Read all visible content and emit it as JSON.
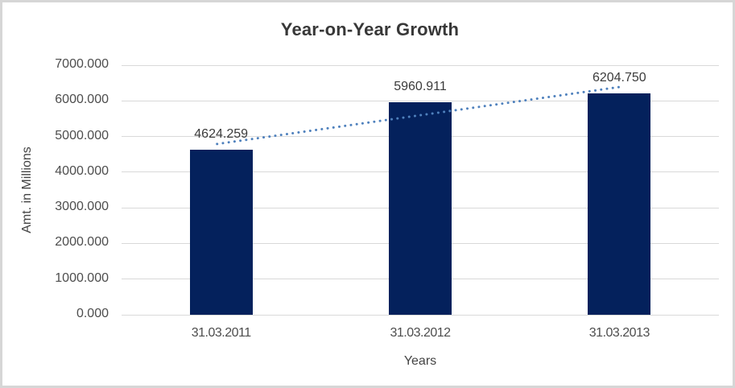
{
  "chart_data": {
    "type": "bar",
    "title": "Year-on-Year Growth",
    "categories": [
      "31.03.2011",
      "31.03.2012",
      "31.03.2013"
    ],
    "values": [
      4624.259,
      5960.911,
      6204.75
    ],
    "data_labels": [
      "4624.259",
      "5960.911",
      "6204.750"
    ],
    "xlabel": "Years",
    "ylabel": "Amt. in Millions",
    "ylim": [
      0,
      7000
    ],
    "ytick_step": 1000,
    "yticks": [
      "0.000",
      "1000.000",
      "2000.000",
      "3000.000",
      "4000.000",
      "5000.000",
      "6000.000",
      "7000.000"
    ],
    "grid": true,
    "legend": "none",
    "bar_color": "#04215c",
    "gridline_color": "#d9d9d9",
    "trendline": {
      "type": "linear",
      "style": "dotted",
      "color": "#4f81bd"
    }
  }
}
